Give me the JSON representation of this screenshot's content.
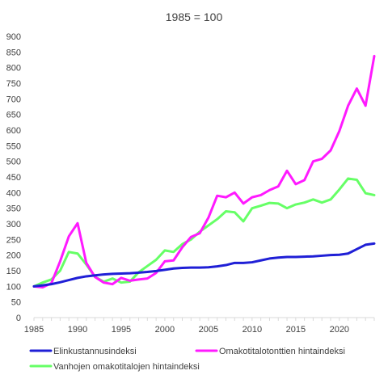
{
  "chart_data": {
    "type": "line",
    "title": "1985 = 100",
    "xlabel": "",
    "ylabel": "",
    "xlim": [
      1985,
      2024
    ],
    "ylim": [
      0,
      900
    ],
    "x_ticks": [
      1985,
      1990,
      1995,
      2000,
      2005,
      2010,
      2015,
      2020
    ],
    "y_ticks": [
      0,
      50,
      100,
      150,
      200,
      250,
      300,
      350,
      400,
      450,
      500,
      550,
      600,
      650,
      700,
      750,
      800,
      850,
      900
    ],
    "grid": false,
    "legend_position": "bottom",
    "x": [
      1985,
      1986,
      1987,
      1988,
      1989,
      1990,
      1991,
      1992,
      1993,
      1994,
      1995,
      1996,
      1997,
      1998,
      1999,
      2000,
      2001,
      2002,
      2003,
      2004,
      2005,
      2006,
      2007,
      2008,
      2009,
      2010,
      2011,
      2012,
      2013,
      2014,
      2015,
      2016,
      2017,
      2018,
      2019,
      2020,
      2021,
      2022,
      2023,
      2024
    ],
    "series": [
      {
        "name": "Elinkustannusindeksi",
        "color": "#1f1fd6",
        "values": [
          100,
          103,
          107,
          113,
          120,
          127,
          132,
          135,
          138,
          140,
          141,
          142,
          144,
          146,
          149,
          153,
          157,
          159,
          160,
          160,
          161,
          164,
          168,
          175,
          175,
          177,
          183,
          189,
          192,
          194,
          194,
          195,
          196,
          198,
          200,
          201,
          205,
          219,
          233,
          237
        ]
      },
      {
        "name": "Omakotitalotonttien hintaindeksi",
        "color": "#ff1aff",
        "values": [
          100,
          97,
          110,
          180,
          260,
          302,
          175,
          130,
          112,
          107,
          127,
          118,
          122,
          125,
          143,
          180,
          183,
          225,
          258,
          270,
          320,
          390,
          385,
          400,
          365,
          385,
          392,
          408,
          420,
          470,
          427,
          440,
          500,
          508,
          535,
          597,
          678,
          733,
          678,
          837
        ]
      },
      {
        "name": "Vanhojen omakotitalojen hintaindeksi",
        "color": "#66ff66",
        "values": [
          100,
          112,
          122,
          150,
          210,
          205,
          170,
          130,
          115,
          125,
          112,
          115,
          145,
          165,
          185,
          215,
          210,
          235,
          250,
          275,
          295,
          315,
          340,
          337,
          308,
          350,
          358,
          367,
          365,
          350,
          362,
          368,
          378,
          368,
          378,
          410,
          445,
          441,
          398,
          392
        ]
      }
    ]
  }
}
